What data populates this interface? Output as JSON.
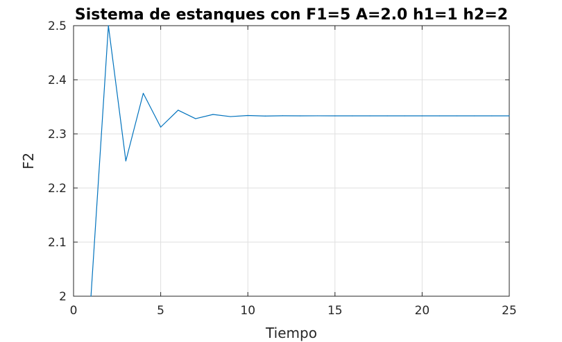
{
  "chart_data": {
    "type": "line",
    "title": "Sistema de estanques con F1=5 A=2.0 h1=1 h2=2",
    "xlabel": "Tiempo",
    "ylabel": "F2",
    "xlim": [
      0,
      25
    ],
    "ylim": [
      2,
      2.5
    ],
    "xticks": [
      0,
      5,
      10,
      15,
      20,
      25
    ],
    "xtick_labels": [
      "0",
      "5",
      "10",
      "15",
      "20",
      "25"
    ],
    "yticks": [
      2,
      2.1,
      2.2,
      2.3,
      2.4,
      2.5
    ],
    "ytick_labels": [
      "2",
      "2.1",
      "2.2",
      "2.3",
      "2.4",
      "2.5"
    ],
    "grid": true,
    "series": [
      {
        "color": "#0072bd",
        "x": [
          1,
          2,
          3,
          4,
          5,
          6,
          7,
          8,
          9,
          10,
          11,
          12,
          13,
          14,
          15,
          16,
          17,
          18,
          19,
          20,
          21,
          22,
          23,
          24,
          25
        ],
        "y": [
          2,
          2.5,
          2.25,
          2.375,
          2.3125,
          2.3438,
          2.3281,
          2.3359,
          2.332,
          2.334,
          2.333,
          2.3335,
          2.3333,
          2.3334,
          2.3333,
          2.3333,
          2.3333,
          2.3333,
          2.3333,
          2.3333,
          2.3333,
          2.3333,
          2.3333,
          2.3333,
          2.3333
        ]
      }
    ]
  }
}
